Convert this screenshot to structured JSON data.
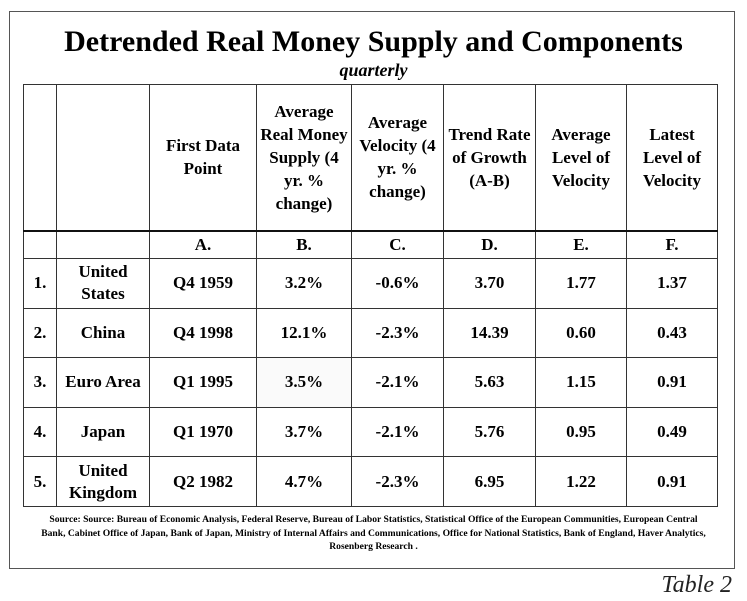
{
  "title": "Detrended Real Money Supply and Components",
  "subtitle": "quarterly",
  "columns": [
    {
      "header": "",
      "letter": ""
    },
    {
      "header": "",
      "letter": ""
    },
    {
      "header": "First Data Point",
      "letter": "A."
    },
    {
      "header": "Average Real Money Supply (4 yr. % change)",
      "letter": "B."
    },
    {
      "header": "Average Velocity (4 yr. % change)",
      "letter": "C."
    },
    {
      "header": "Trend Rate of Growth (A-B)",
      "letter": "D."
    },
    {
      "header": "Average Level of Velocity",
      "letter": "E."
    },
    {
      "header": "Latest Level of Velocity",
      "letter": "F."
    }
  ],
  "rows": [
    {
      "num": "1.",
      "country": "United States",
      "first": "Q4 1959",
      "b": "3.2%",
      "c": "-0.6%",
      "d": "3.70",
      "e": "1.77",
      "f": "1.37"
    },
    {
      "num": "2.",
      "country": "China",
      "first": "Q4 1998",
      "b": "12.1%",
      "c": "-2.3%",
      "d": "14.39",
      "e": "0.60",
      "f": "0.43"
    },
    {
      "num": "3.",
      "country": "Euro Area",
      "first": "Q1 1995",
      "b": "3.5%",
      "c": "-2.1%",
      "d": "5.63",
      "e": "1.15",
      "f": "0.91"
    },
    {
      "num": "4.",
      "country": "Japan",
      "first": "Q1 1970",
      "b": "3.7%",
      "c": "-2.1%",
      "d": "5.76",
      "e": "0.95",
      "f": "0.49"
    },
    {
      "num": "5.",
      "country": "United Kingdom",
      "first": "Q2 1982",
      "b": "4.7%",
      "c": "-2.3%",
      "d": "6.95",
      "e": "1.22",
      "f": "0.91"
    }
  ],
  "source": "Source: Source: Bureau of Economic Analysis, Federal Reserve, Bureau of Labor Statistics, Statistical Office of the European Communities, European Central Bank, Cabinet Office of Japan, Bank of Japan, Ministry of Internal Affairs and Communications, Office for National Statistics, Bank of England, Haver Analytics, Rosenberg Research .",
  "table_label": "Table 2"
}
